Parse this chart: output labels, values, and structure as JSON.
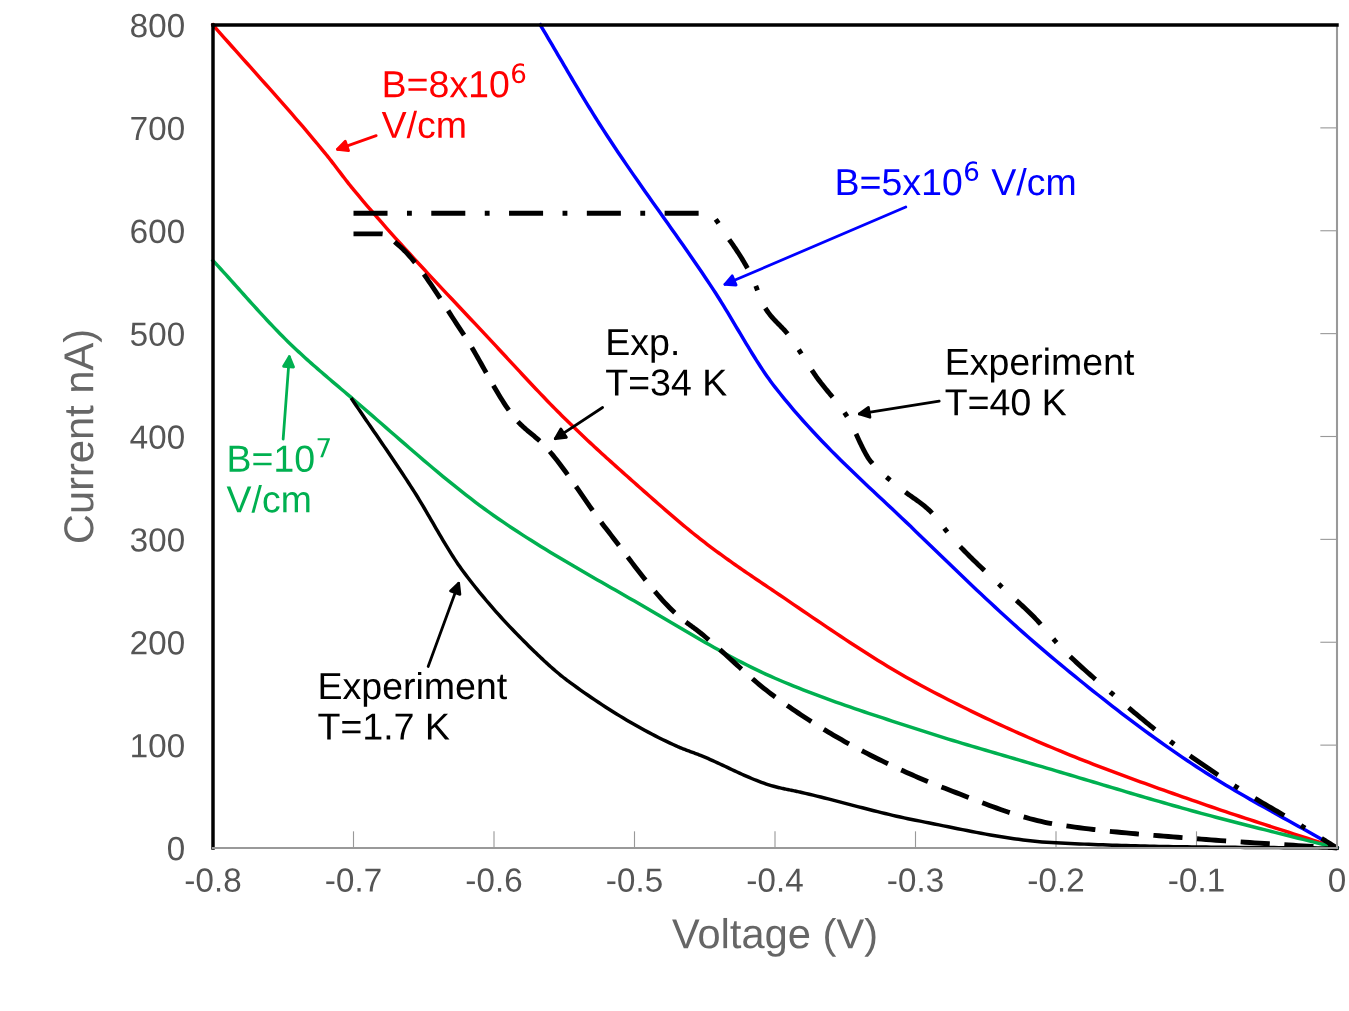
{
  "chart_data": {
    "type": "line",
    "xlabel": "Voltage (V)",
    "ylabel": "Current nA)",
    "xlim": [
      -0.8,
      0
    ],
    "xticks": [
      -0.8,
      -0.7,
      -0.6,
      -0.5,
      -0.4,
      -0.3,
      -0.2,
      -0.1,
      0
    ],
    "annotations": [
      {
        "text": "Exp.\nT=34 K",
        "x": -0.564,
        "y": 391
      },
      {
        "text": "Experiment\nT=40 K",
        "x": -0.349,
        "y": 420
      },
      {
        "text": "Experiment\nT=1.7 K",
        "x": -0.622,
        "y": 269
      }
    ],
    "ylim": [
      0,
      800
    ],
    "yticks": [
      0,
      100,
      200,
      300,
      400,
      500,
      600,
      700,
      800
    ],
    "grid": false,
    "marker": "none",
    "series": [
      {
        "name": "B=8x10$^{6}$\nV/cm",
        "color": "#ff0000",
        "line_style": "solid",
        "x": [
          -0.8,
          -0.72,
          -0.7,
          -0.6,
          -0.55,
          -0.5,
          -0.45,
          -0.4,
          -0.3,
          -0.2,
          -0.1,
          0
        ],
        "values": [
          800,
          675,
          640,
          490,
          418,
          355,
          297,
          249,
          161,
          96,
          45,
          0
        ]
      },
      {
        "name": "B=5x10$^{6}$ V/cm",
        "color": "#0000ff",
        "line_style": "solid",
        "x": [
          -0.567,
          -0.525,
          -0.444,
          -0.4,
          -0.3,
          -0.2,
          -0.1,
          0
        ],
        "values": [
          800,
          704,
          543,
          448,
          308,
          182,
          79,
          0
        ]
      },
      {
        "name": "B=10$^{7}$\nV/cm",
        "color": "#00b050",
        "line_style": "solid",
        "x": [
          -0.8,
          -0.745,
          -0.7,
          -0.6,
          -0.5,
          -0.4,
          -0.3,
          -0.2,
          -0.1,
          0
        ],
        "values": [
          571,
          490,
          436,
          323,
          240,
          165,
          116,
          75,
          35,
          0
        ]
      },
      {
        "color": "#000000",
        "line_style": "dashed",
        "x": [
          -0.7,
          -0.68,
          -0.668,
          -0.622,
          -0.584,
          -0.564,
          -0.52,
          -0.47,
          -0.453,
          -0.401,
          -0.343,
          -0.279,
          -0.2,
          -0.1,
          0
        ],
        "values": [
          597,
          597,
          586,
          500,
          416,
          391,
          310,
          227,
          209,
          148,
          98,
          58,
          23,
          9,
          0
        ]
      },
      {
        "color": "#000000",
        "line_style": "dashdot",
        "x": [
          -0.7,
          -0.448,
          -0.434,
          -0.417,
          -0.407,
          -0.39,
          -0.37,
          -0.349,
          -0.332,
          -0.311,
          -0.29,
          -0.273,
          -0.238,
          -0.216,
          -0.195,
          -0.16,
          -0.117,
          -0.07,
          -0.027,
          0
        ],
        "values": [
          617,
          617,
          594,
          557,
          525,
          498,
          457,
          420,
          376,
          350,
          328,
          300,
          253,
          225,
          193,
          150,
          102,
          58,
          23,
          0
        ]
      },
      {
        "color": "#000000",
        "line_style": "solid",
        "x": [
          -0.701,
          -0.658,
          -0.622,
          -0.572,
          -0.546,
          -0.47,
          -0.453,
          -0.401,
          -0.381,
          -0.3,
          -0.2,
          -0.1,
          0
        ],
        "values": [
          436,
          349,
          269,
          192,
          161,
          99,
          90,
          60,
          54,
          27,
          5,
          1,
          0
        ]
      }
    ]
  }
}
